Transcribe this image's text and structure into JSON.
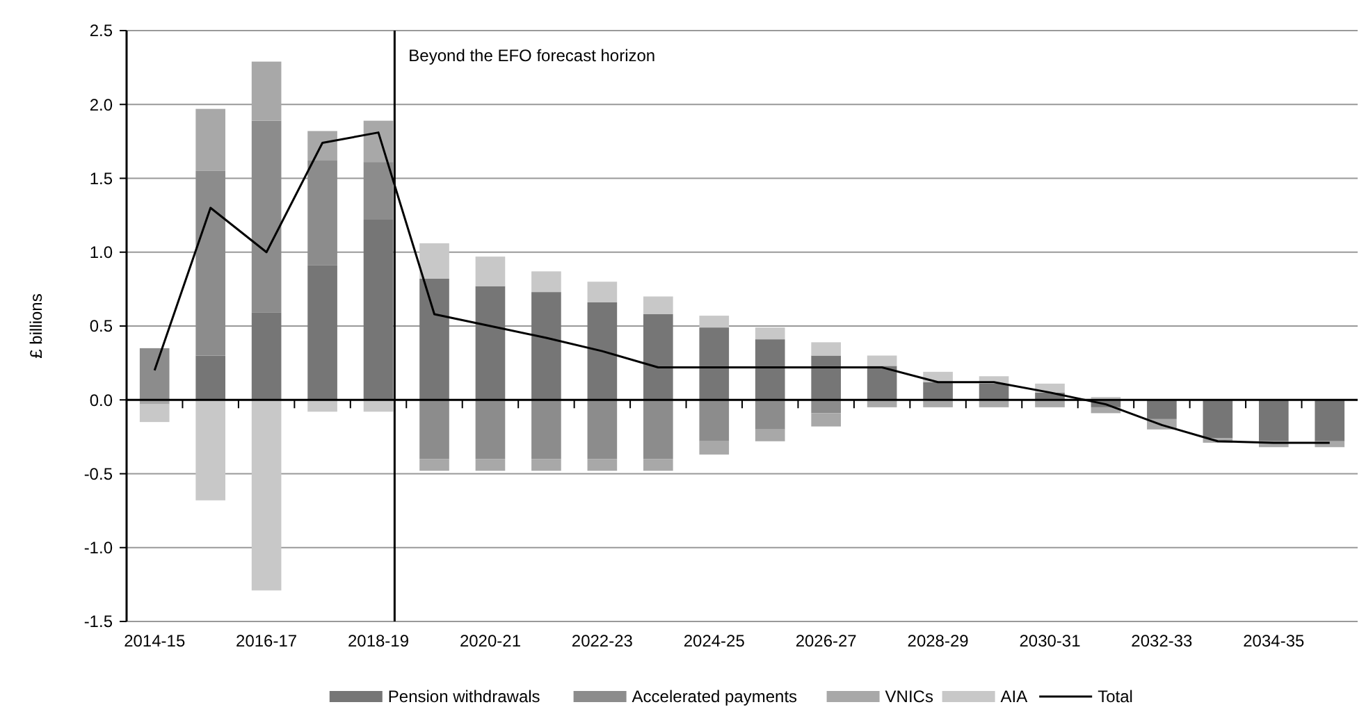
{
  "chart_data": {
    "type": "bar",
    "stacked": true,
    "ylabel": "£ billions",
    "categories": [
      "2014-15",
      null,
      "2016-17",
      null,
      "2018-19",
      null,
      "2020-21",
      null,
      "2022-23",
      null,
      "2024-25",
      null,
      "2026-27",
      null,
      "2028-29",
      null,
      "2030-31",
      null,
      "2032-33",
      null,
      "2034-35",
      null
    ],
    "series": [
      {
        "name": "Pension withdrawals",
        "color": "#767676",
        "values": [
          0,
          0.3,
          0.59,
          0.91,
          1.22,
          0.82,
          0.77,
          0.73,
          0.66,
          0.58,
          0.49,
          0.41,
          0.3,
          0.23,
          0.12,
          0.11,
          0.05,
          -0.05,
          -0.13,
          -0.26,
          -0.28,
          -0.28
        ]
      },
      {
        "name": "Accelerated payments",
        "color": "#8c8c8c",
        "values": [
          0.35,
          1.25,
          1.3,
          0.71,
          0.39,
          -0.4,
          -0.4,
          -0.4,
          -0.4,
          -0.4,
          -0.28,
          -0.2,
          -0.09,
          0,
          0,
          0,
          0,
          0,
          0,
          0,
          0,
          0
        ]
      },
      {
        "name": "VNICs",
        "color": "#a8a8a8",
        "values": [
          -0.03,
          0.42,
          0.4,
          0.2,
          0.28,
          -0.08,
          -0.08,
          -0.08,
          -0.08,
          -0.08,
          -0.09,
          -0.08,
          -0.09,
          -0.05,
          -0.05,
          -0.05,
          -0.05,
          -0.04,
          -0.07,
          -0.03,
          -0.04,
          -0.04
        ]
      },
      {
        "name": "AIA",
        "color": "#c8c8c8",
        "values": [
          -0.12,
          -0.68,
          -1.29,
          -0.08,
          -0.08,
          0.24,
          0.2,
          0.14,
          0.14,
          0.12,
          0.08,
          0.08,
          0.09,
          0.07,
          0.07,
          0.05,
          0.06,
          0.02,
          0,
          0,
          0,
          0
        ]
      },
      {
        "name": "Total",
        "type": "line",
        "color": "#000000",
        "values": [
          0.2,
          1.3,
          1.0,
          1.74,
          1.81,
          0.58,
          0.5,
          0.42,
          0.33,
          0.22,
          0.22,
          0.22,
          0.22,
          0.22,
          0.12,
          0.12,
          0.05,
          -0.03,
          -0.17,
          -0.28,
          -0.29,
          -0.29
        ]
      }
    ],
    "ylim": [
      -1.5,
      2.5
    ],
    "yticks": [
      {
        "value": -1.5,
        "label": "-1.5"
      },
      {
        "value": -1,
        "label": "-1.0"
      },
      {
        "value": -0.5,
        "label": "-0.5"
      },
      {
        "value": 0,
        "label": "0.0"
      },
      {
        "value": 0.5,
        "label": "0.5"
      },
      {
        "value": 1,
        "label": "1.0"
      },
      {
        "value": 1.5,
        "label": "1.5"
      },
      {
        "value": 2,
        "label": "2.0"
      },
      {
        "value": 2.5,
        "label": "2.5"
      }
    ],
    "grid": "y",
    "legend": "bottom",
    "ref_lines": [
      {
        "axis": "x",
        "value": "2018-19",
        "label": "Beyond the EFO forecast horizon",
        "color": "#000000"
      }
    ]
  }
}
